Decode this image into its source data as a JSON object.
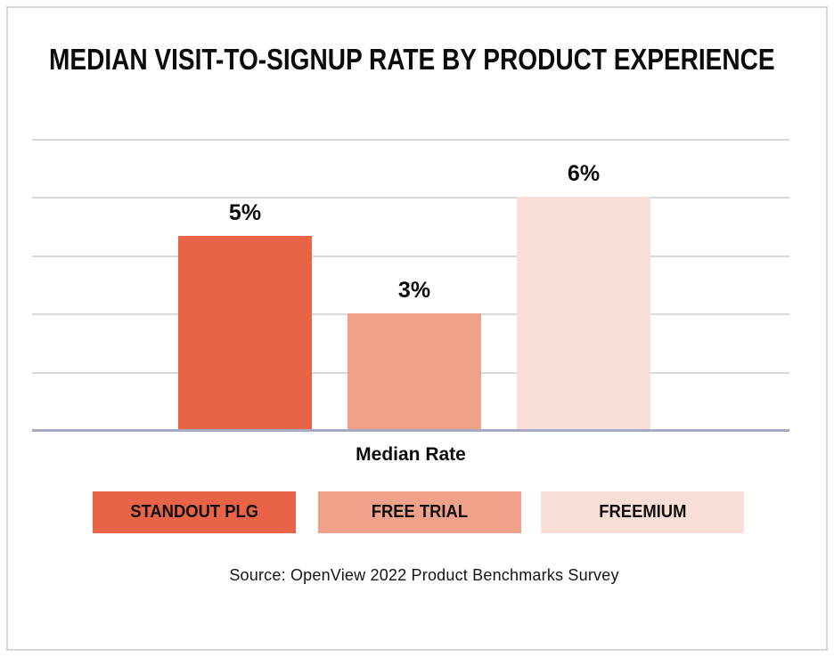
{
  "chart_data": {
    "type": "bar",
    "title": "MEDIAN VISIT-TO-SIGNUP RATE BY PRODUCT EXPERIENCE",
    "categories": [
      "STANDOUT PLG",
      "FREE TRIAL",
      "FREEMIUM"
    ],
    "values": [
      5,
      3,
      6
    ],
    "value_labels": [
      "5%",
      "3%",
      "6%"
    ],
    "xlabel": "Median Rate",
    "ylabel": "",
    "ylim": [
      0,
      7.5
    ],
    "gridline_interval": 1.5,
    "grid": true,
    "legend_position": "bottom",
    "colors": [
      "#E96347",
      "#F0A18A",
      "#F9DFD7"
    ],
    "gridline_color": "#D9D9D9",
    "axis_line_color": "#A7AAC3",
    "source": "Source: OpenView 2022 Product Benchmarks Survey"
  }
}
